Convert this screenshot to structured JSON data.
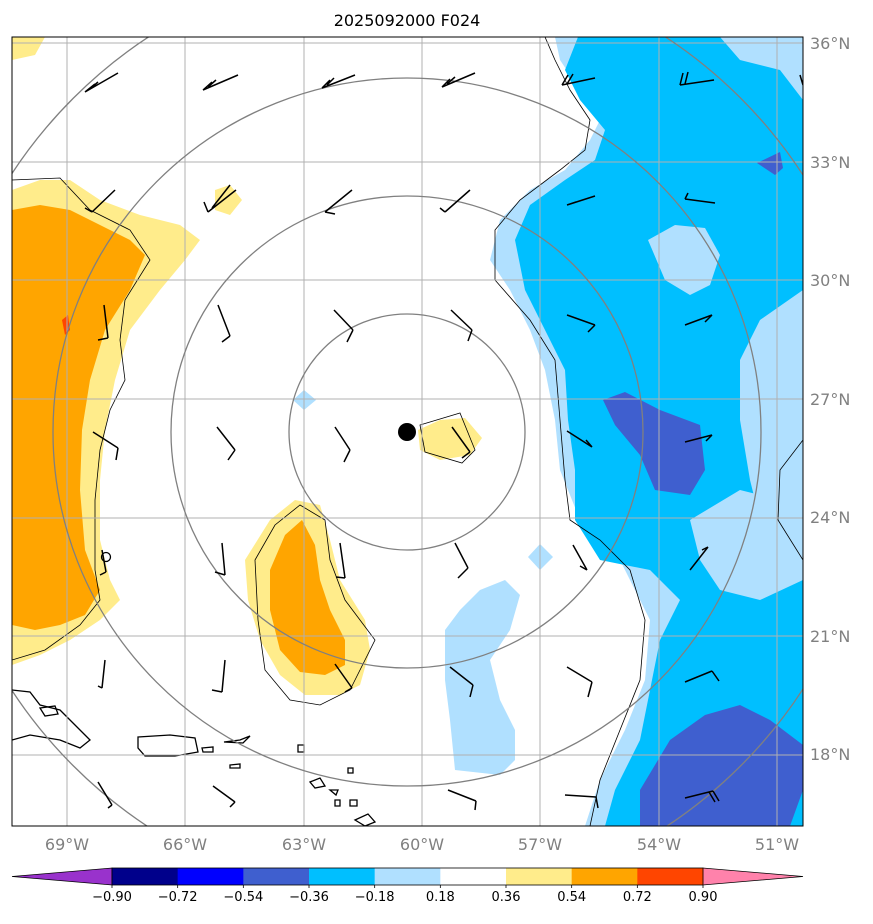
{
  "title": "2025092000 F024",
  "map": {
    "lon_range": [
      -70,
      -50.5
    ],
    "lat_range": [
      15.7,
      36.5
    ],
    "lon_ticks": [
      -69,
      -66,
      -63,
      -60,
      -57,
      -54,
      -51
    ],
    "lon_labels": [
      "69°W",
      "66°W",
      "63°W",
      "60°W",
      "57°W",
      "54°W",
      "51°W"
    ],
    "lat_ticks": [
      18,
      21,
      24,
      27,
      30,
      33,
      36
    ],
    "lat_labels": [
      "18°N",
      "21°N",
      "24°N",
      "27°N",
      "30°N",
      "33°N",
      "36°N"
    ],
    "storm_center": {
      "lon": -60.4,
      "lat": 26.15
    },
    "range_rings_deg": [
      3,
      6,
      9,
      12
    ],
    "field_colors": {
      "strong_positive": "#ffa500",
      "positive": "#ffec8b",
      "weak_negative": "#b0e0ff",
      "negative": "#00bfff",
      "strong_negative": "#4060d0"
    },
    "grid_color": "#b0b0b0",
    "ring_color": "#808080"
  },
  "colorbar": {
    "levels": [
      "−0.90",
      "−0.72",
      "−0.54",
      "−0.36",
      "−0.18",
      "0.18",
      "0.36",
      "0.54",
      "0.72",
      "0.90"
    ],
    "colors": [
      "#9932cc",
      "#00008b",
      "#0000ff",
      "#3f5fcf",
      "#00bfff",
      "#b0e0ff",
      "#ffffff",
      "#ffec8b",
      "#ffa500",
      "#ff4500",
      "#b22222",
      "#ff82ab"
    ]
  }
}
